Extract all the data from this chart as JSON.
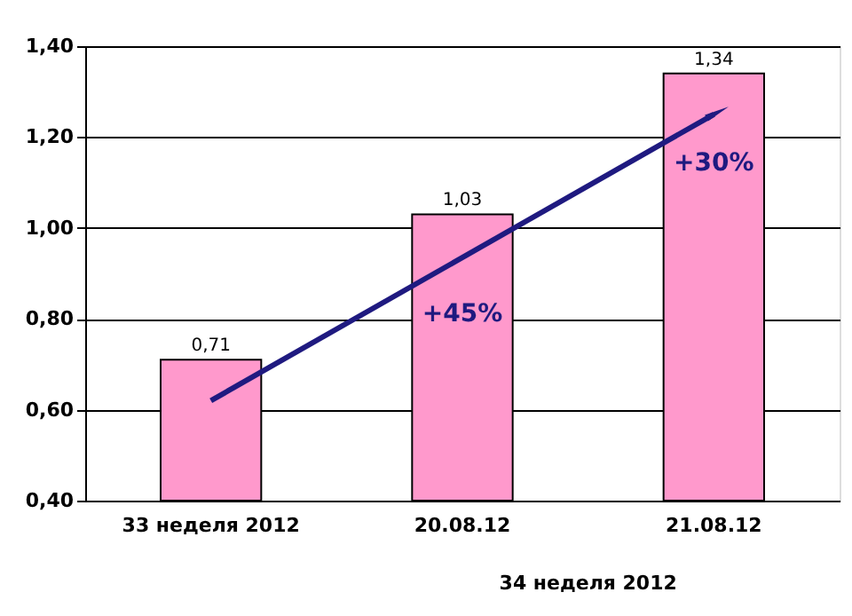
{
  "chart_data": {
    "type": "bar",
    "categories": [
      "33 неделя 2012",
      "20.08.12",
      "21.08.12"
    ],
    "series": [
      {
        "color": "#ff99cc",
        "values": [
          0.71,
          1.03,
          1.34
        ]
      },
      {
        "type": "line",
        "color": "#1f1a80",
        "x": [
          "33 неделя 2012",
          "21.08.12"
        ],
        "values": [
          0.62,
          1.25
        ]
      }
    ],
    "ylim": [
      0.4,
      1.4
    ],
    "yticks": [
      {
        "value": 0.4,
        "label": "0,40"
      },
      {
        "value": 0.6,
        "label": "0,60"
      },
      {
        "value": 0.8,
        "label": "0,80"
      },
      {
        "value": 1.0,
        "label": "1,00"
      },
      {
        "value": 1.2,
        "label": "1,20"
      },
      {
        "value": 1.4,
        "label": "1,40"
      }
    ],
    "value_labels": [
      "0,71",
      "1,03",
      "1,34"
    ],
    "annotations": [
      "+45%",
      "+30%",
      "34 неделя 2012"
    ],
    "grid": "y"
  }
}
